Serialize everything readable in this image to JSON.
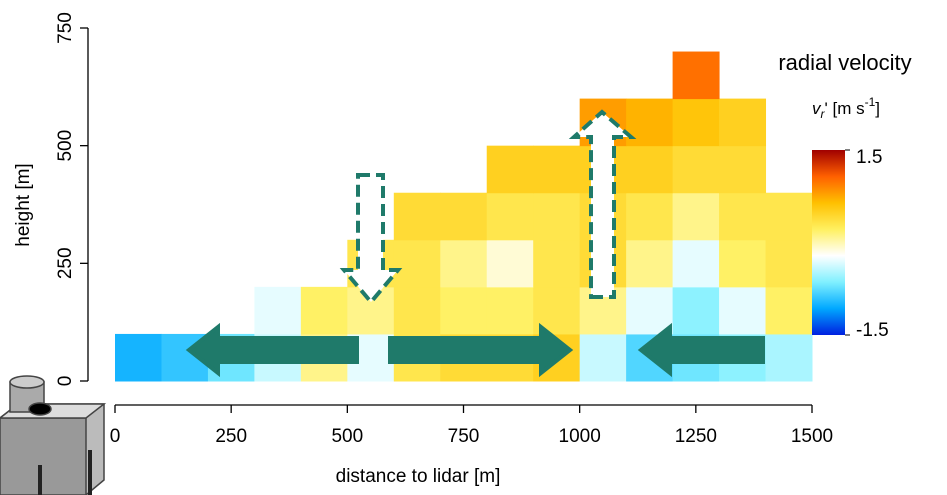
{
  "chart_data": {
    "type": "heatmap",
    "x_label": "distance to lidar [m]",
    "y_label": "height [m]",
    "colorbar_title": "radial velocity",
    "colorbar_label": {
      "symbol": "v",
      "subscript": "r",
      "unit": "' [m s",
      "superscript": "-1",
      "close": "]"
    },
    "xlim": [
      0,
      1500
    ],
    "xticks": [
      0,
      250,
      500,
      750,
      1000,
      1250,
      1500
    ],
    "ylim": [
      0,
      750
    ],
    "yticks": [
      0,
      250,
      500,
      750
    ],
    "x_bins": [
      0,
      100,
      200,
      300,
      400,
      500,
      600,
      700,
      800,
      900,
      1000,
      1100,
      1200,
      1300,
      1400,
      1500
    ],
    "y_bins": [
      0,
      100,
      200,
      300,
      400,
      500,
      600,
      700
    ],
    "values": [
      [
        -1.0,
        -0.9,
        -0.7,
        -0.4,
        0.1,
        -0.3,
        0.3,
        0.4,
        0.4,
        0.5,
        -0.4,
        -0.8,
        -0.7,
        -0.6,
        -0.5
      ],
      [
        null,
        null,
        null,
        -0.3,
        0.2,
        0.1,
        0.3,
        0.2,
        0.2,
        0.3,
        0.1,
        -0.3,
        -0.6,
        -0.3,
        0.2
      ],
      [
        null,
        null,
        null,
        null,
        null,
        0.3,
        0.3,
        0.1,
        -0.1,
        0.3,
        0.4,
        0.1,
        -0.3,
        0.2,
        0.3
      ],
      [
        null,
        null,
        null,
        null,
        null,
        null,
        0.4,
        0.4,
        0.3,
        0.3,
        0.4,
        0.3,
        0.1,
        0.3,
        0.3
      ],
      [
        null,
        null,
        null,
        null,
        null,
        null,
        null,
        null,
        0.5,
        0.5,
        0.5,
        0.5,
        0.4,
        0.4,
        null
      ],
      [
        null,
        null,
        null,
        null,
        null,
        null,
        null,
        null,
        null,
        null,
        0.8,
        0.7,
        0.6,
        0.5,
        null
      ],
      [
        null,
        null,
        null,
        null,
        null,
        null,
        null,
        null,
        null,
        null,
        null,
        null,
        1.0,
        null,
        null
      ]
    ],
    "clim": [
      -1.5,
      1.5
    ],
    "colorbar_ticks": [
      1.5,
      -1.5
    ],
    "colormap": [
      "#0020e0",
      "#00a8ff",
      "#80f0ff",
      "#ffffff",
      "#fff060",
      "#ffc000",
      "#ff6000",
      "#a00000"
    ]
  }
}
